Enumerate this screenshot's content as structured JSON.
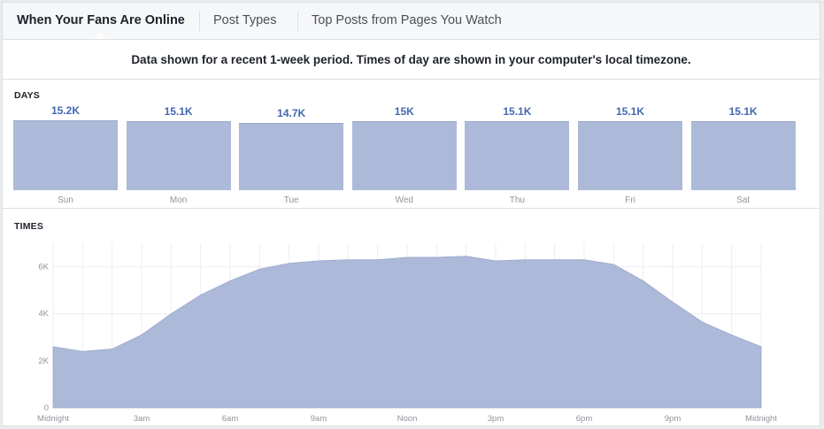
{
  "tabs": [
    {
      "label": "When Your Fans Are Online",
      "active": true
    },
    {
      "label": "Post Types",
      "active": false
    },
    {
      "label": "Top Posts from Pages You Watch",
      "active": false
    }
  ],
  "notice": "Data shown for a recent 1-week period. Times of day are shown in your computer's local timezone.",
  "days_section": {
    "label": "DAYS"
  },
  "times_section": {
    "label": "TIMES"
  },
  "colors": {
    "bar_fill": "#adb9d8",
    "value_text": "#4267b2",
    "area_fill": "#adb9d8"
  },
  "chart_data": [
    {
      "type": "bar",
      "categories": [
        "Sun",
        "Mon",
        "Tue",
        "Wed",
        "Thu",
        "Fri",
        "Sat"
      ],
      "values": [
        15200,
        15100,
        14700,
        15000,
        15100,
        15100,
        15100
      ],
      "value_labels": [
        "15.2K",
        "15.1K",
        "14.7K",
        "15K",
        "15.1K",
        "15.1K",
        "15.1K"
      ],
      "title": "DAYS"
    },
    {
      "type": "area",
      "title": "TIMES",
      "x": [
        0,
        1,
        2,
        3,
        4,
        5,
        6,
        7,
        8,
        9,
        10,
        11,
        12,
        13,
        14,
        15,
        16,
        17,
        18,
        19,
        20,
        21,
        22,
        23,
        24
      ],
      "values": [
        2600,
        2400,
        2500,
        3100,
        4000,
        4800,
        5400,
        5900,
        6150,
        6250,
        6300,
        6300,
        6400,
        6400,
        6450,
        6250,
        6300,
        6300,
        6300,
        6100,
        5400,
        4500,
        3650,
        3100,
        2600
      ],
      "xtick_labels": [
        "Midnight",
        "3am",
        "6am",
        "9am",
        "Noon",
        "3pm",
        "6pm",
        "9pm",
        "Midnight"
      ],
      "xtick_hours": [
        0,
        3,
        6,
        9,
        12,
        15,
        18,
        21,
        24
      ],
      "ytick_labels": [
        "0",
        "2K",
        "4K",
        "6K"
      ],
      "ytick_values": [
        0,
        2000,
        4000,
        6000
      ],
      "ylim": [
        0,
        7000
      ],
      "grid": true
    }
  ]
}
